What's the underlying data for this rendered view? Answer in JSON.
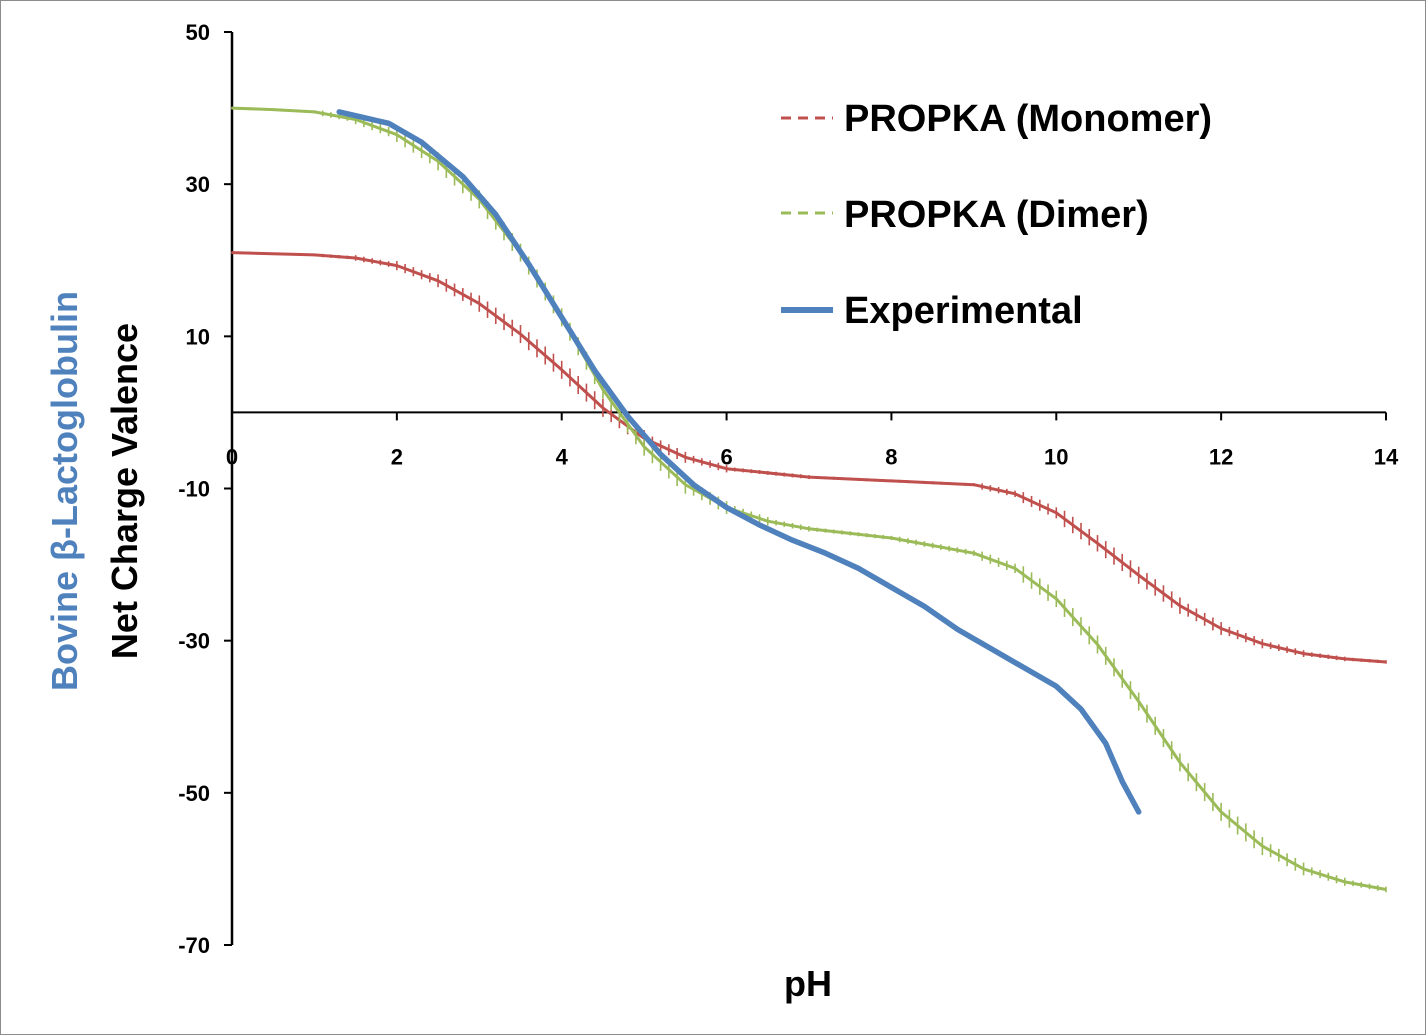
{
  "chart_data": {
    "type": "line",
    "xlabel": "pH",
    "ylabel_top": "Bovine β-Lactoglobulin",
    "ylabel_bottom": "Net Charge Valence",
    "xlim": [
      0,
      14
    ],
    "ylim": [
      -70,
      50
    ],
    "xticks": [
      0,
      2,
      4,
      6,
      8,
      10,
      12,
      14
    ],
    "yticks": [
      50,
      30,
      10,
      -10,
      -30,
      -50,
      -70
    ],
    "grid": false,
    "legend_position": "top-right",
    "series": [
      {
        "name": "PROPKA (Monomer)",
        "color": "#c0504d",
        "style": "dashed",
        "x": [
          0,
          1,
          1.5,
          2,
          2.5,
          3,
          3.5,
          4,
          4.5,
          5,
          5.5,
          6,
          7,
          8,
          9,
          9.5,
          10,
          10.5,
          11,
          11.5,
          12,
          12.5,
          13,
          13.5,
          14
        ],
        "y": [
          21,
          20.7,
          20.3,
          19.3,
          17.3,
          14.3,
          10.3,
          5.6,
          0.6,
          -3.4,
          -5.9,
          -7.4,
          -8.5,
          -9,
          -9.5,
          -10.7,
          -13.2,
          -17.2,
          -21.4,
          -25.4,
          -28.4,
          -30.4,
          -31.7,
          -32.4,
          -32.8
        ]
      },
      {
        "name": "PROPKA (Dimer)",
        "color": "#9bbb59",
        "style": "dashed",
        "x": [
          0,
          0.5,
          1,
          1.5,
          2,
          2.5,
          3,
          3.5,
          4,
          4.5,
          5,
          5.5,
          6,
          6.5,
          7,
          8,
          9,
          9.5,
          10,
          10.5,
          11,
          11.5,
          12,
          12.5,
          13,
          13.5,
          14
        ],
        "y": [
          40,
          39.8,
          39.5,
          38.5,
          36.5,
          33,
          28,
          21,
          12.5,
          3,
          -4.5,
          -9.5,
          -12.5,
          -14.3,
          -15.3,
          -16.5,
          -18.5,
          -20.5,
          -24.5,
          -30.5,
          -38,
          -46,
          -52.5,
          -57,
          -60,
          -61.7,
          -62.7
        ]
      },
      {
        "name": "Experimental",
        "color": "#4f81bd",
        "style": "solid",
        "x": [
          1.3,
          1.5,
          1.9,
          2.3,
          2.8,
          3.2,
          3.6,
          4.0,
          4.4,
          4.8,
          5.2,
          5.6,
          6.0,
          6.4,
          6.8,
          7.2,
          7.6,
          8.0,
          8.4,
          8.8,
          9.2,
          9.6,
          10.0,
          10.3,
          10.6,
          10.8,
          11.0
        ],
        "y": [
          39.5,
          39.0,
          38.0,
          35.5,
          31.0,
          26.0,
          19.5,
          12.5,
          5.5,
          -0.5,
          -5.5,
          -9.5,
          -12.5,
          -14.8,
          -16.8,
          -18.5,
          -20.5,
          -23.0,
          -25.5,
          -28.5,
          -31.0,
          -33.5,
          -36.0,
          -39.0,
          -43.5,
          -48.5,
          -52.5
        ]
      }
    ]
  }
}
